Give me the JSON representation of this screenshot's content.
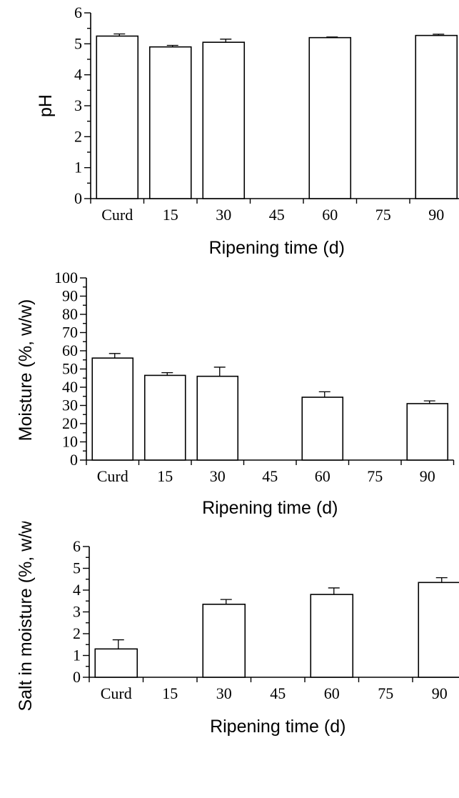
{
  "chart_data": [
    {
      "type": "bar",
      "categories": [
        "Curd",
        "15",
        "30",
        "45",
        "60",
        "75",
        "90"
      ],
      "values": [
        5.25,
        4.9,
        5.05,
        null,
        5.2,
        null,
        5.27
      ],
      "errors": [
        0.07,
        0.05,
        0.1,
        null,
        0.02,
        null,
        0.04
      ],
      "yticks": [
        "0",
        "1",
        "2",
        "3",
        "4",
        "5",
        "6"
      ],
      "ylim": [
        0,
        6
      ],
      "xlabel": "Ripening time (d)",
      "ylabel": "pH",
      "title": ""
    },
    {
      "type": "bar",
      "categories": [
        "Curd",
        "15",
        "30",
        "45",
        "60",
        "75",
        "90"
      ],
      "values": [
        56,
        46.5,
        46,
        null,
        34.5,
        null,
        31
      ],
      "errors": [
        2.5,
        1.5,
        5,
        null,
        3,
        null,
        1.5
      ],
      "yticks": [
        "0",
        "10",
        "20",
        "30",
        "40",
        "50",
        "60",
        "70",
        "80",
        "90",
        "100"
      ],
      "ylim": [
        0,
        100
      ],
      "xlabel": "Ripening time (d)",
      "ylabel": "Moisture (%, w/w)",
      "title": ""
    },
    {
      "type": "bar",
      "categories": [
        "Curd",
        "15",
        "30",
        "45",
        "60",
        "75",
        "90"
      ],
      "values": [
        1.3,
        null,
        3.35,
        null,
        3.8,
        null,
        4.35
      ],
      "errors": [
        0.42,
        null,
        0.22,
        null,
        0.3,
        null,
        0.22
      ],
      "yticks": [
        "0",
        "1",
        "2",
        "3",
        "4",
        "5",
        "6"
      ],
      "ylim": [
        0,
        6
      ],
      "xlabel": "Ripening time (d)",
      "ylabel": "Salt in moisture (%, w/w)",
      "title": ""
    }
  ]
}
